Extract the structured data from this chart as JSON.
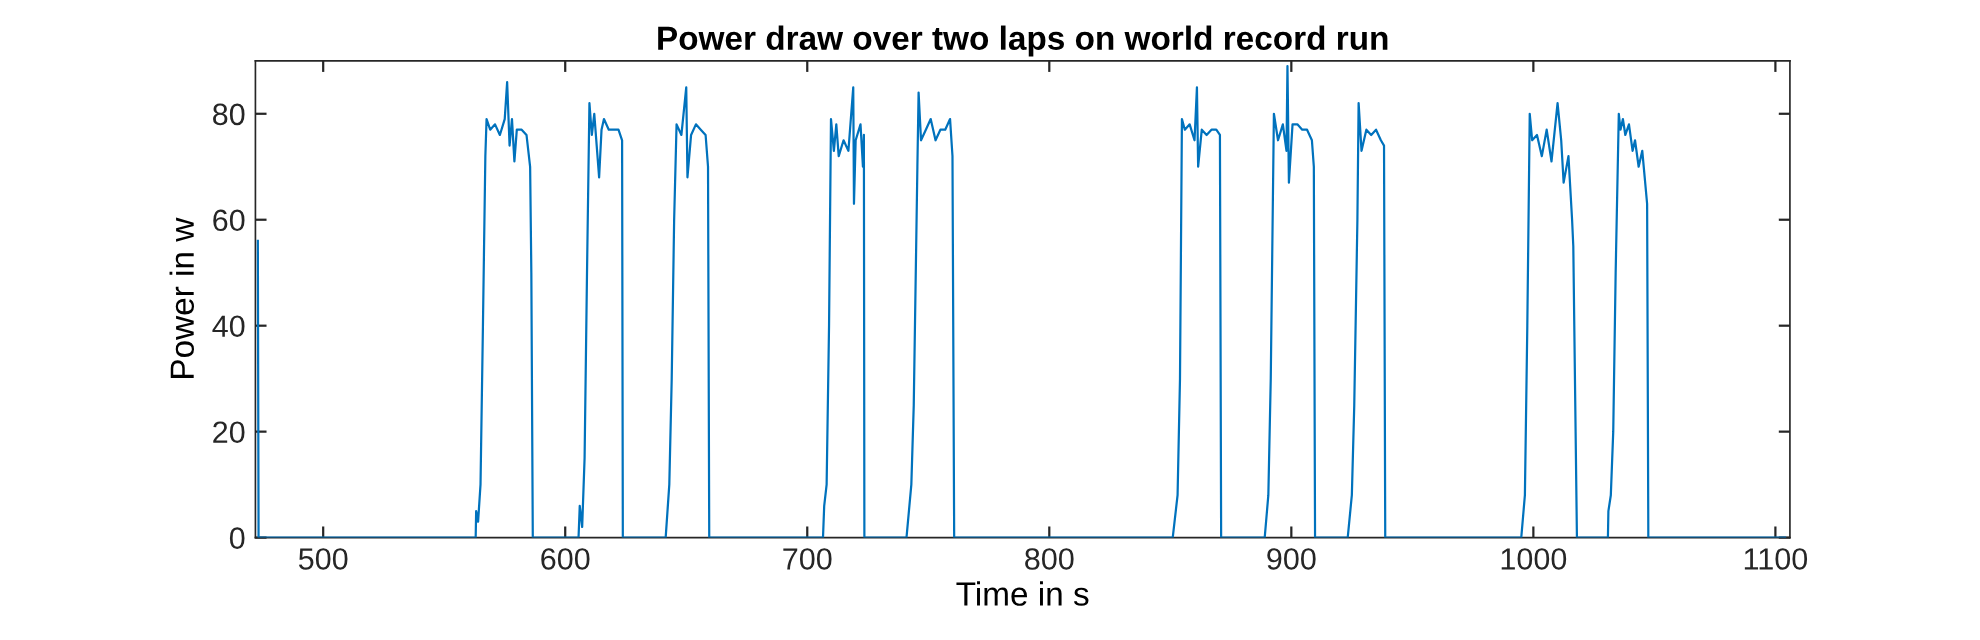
{
  "chart_data": {
    "type": "line",
    "title": "Power draw over two laps on world record run",
    "xlabel": "Time in s",
    "ylabel": "Power in w",
    "xlim": [
      472,
      1106
    ],
    "ylim": [
      0,
      90
    ],
    "xticks": [
      500,
      600,
      700,
      800,
      900,
      1000,
      1100
    ],
    "yticks": [
      0,
      20,
      40,
      60,
      80
    ],
    "grid": false,
    "legend": false,
    "marker": "none",
    "line_style": "solid",
    "series": [
      {
        "color": "#0072bd",
        "x": [
          473,
          473.3,
          563,
          563.2,
          564,
          565,
          566,
          567,
          567.5,
          569,
          571,
          573,
          575,
          576,
          577,
          578,
          579,
          580,
          582,
          584,
          585.5,
          586,
          586.6,
          605.5,
          606,
          607,
          608,
          609,
          610,
          611,
          612,
          613,
          614,
          615,
          616,
          618,
          620,
          622,
          623.5,
          623.8,
          641.5,
          643,
          644,
          645,
          646,
          648,
          650,
          650.5,
          652,
          654,
          656,
          658,
          659,
          659.5,
          706.5,
          707,
          708,
          709,
          709.8,
          711,
          712,
          713,
          715,
          717,
          719,
          719.3,
          720,
          722,
          723,
          723.4,
          723.6,
          741,
          742,
          743,
          744,
          745.5,
          746,
          747,
          749,
          751,
          753,
          755,
          757,
          759,
          760,
          760.7,
          851,
          853,
          854,
          854.8,
          856,
          858,
          860,
          861,
          861.5,
          863,
          865,
          867,
          869,
          870.5,
          871,
          889,
          890.5,
          891.5,
          892.8,
          894.5,
          896.5,
          898,
          898.4,
          899,
          900.5,
          902.5,
          904.5,
          906.5,
          908.5,
          909.3,
          909.8,
          923.3,
          925,
          926,
          927.3,
          927.8,
          929,
          931,
          933,
          935,
          937,
          938.3,
          938.8,
          995,
          996.5,
          997.5,
          998.5,
          999.5,
          1001.5,
          1003.5,
          1005.5,
          1007.5,
          1010,
          1011.5,
          1012.5,
          1014.5,
          1016,
          1016.5,
          1018,
          1030.8,
          1031,
          1032,
          1033,
          1034,
          1035.3,
          1036,
          1037,
          1038,
          1039.5,
          1041,
          1042,
          1043.5,
          1045,
          1046,
          1047,
          1047.5,
          1104
        ],
        "values": [
          56,
          0,
          0,
          5,
          3,
          10,
          40,
          72,
          79,
          77,
          78,
          76,
          79,
          86,
          74,
          79,
          71,
          77,
          77,
          76,
          70,
          50,
          0,
          0,
          6,
          2,
          15,
          50,
          82,
          76,
          80,
          74,
          68,
          77,
          79,
          77,
          77,
          77,
          75,
          0,
          0,
          10,
          30,
          60,
          78,
          76,
          85,
          68,
          76,
          78,
          77,
          76,
          70,
          0,
          0,
          6,
          10,
          40,
          79,
          73,
          78,
          72,
          75,
          73,
          85,
          63,
          75,
          78,
          70,
          76,
          0,
          0,
          5,
          10,
          25,
          70,
          84,
          75,
          77,
          79,
          75,
          77,
          77,
          79,
          72,
          0,
          0,
          8,
          30,
          79,
          77,
          78,
          75,
          85,
          70,
          77,
          76,
          77,
          77,
          76,
          0,
          0,
          8,
          30,
          80,
          75,
          78,
          73,
          89,
          67,
          78,
          78,
          77,
          77,
          75,
          70,
          0,
          0,
          8,
          25,
          60,
          82,
          73,
          77,
          76,
          77,
          75,
          74,
          0,
          0,
          8,
          40,
          80,
          75,
          76,
          72,
          77,
          71,
          82,
          75,
          67,
          72,
          60,
          55,
          0,
          0,
          5,
          8,
          20,
          50,
          80,
          77,
          79,
          76,
          78,
          73,
          75,
          70,
          73,
          68,
          63,
          0,
          0
        ]
      }
    ]
  }
}
